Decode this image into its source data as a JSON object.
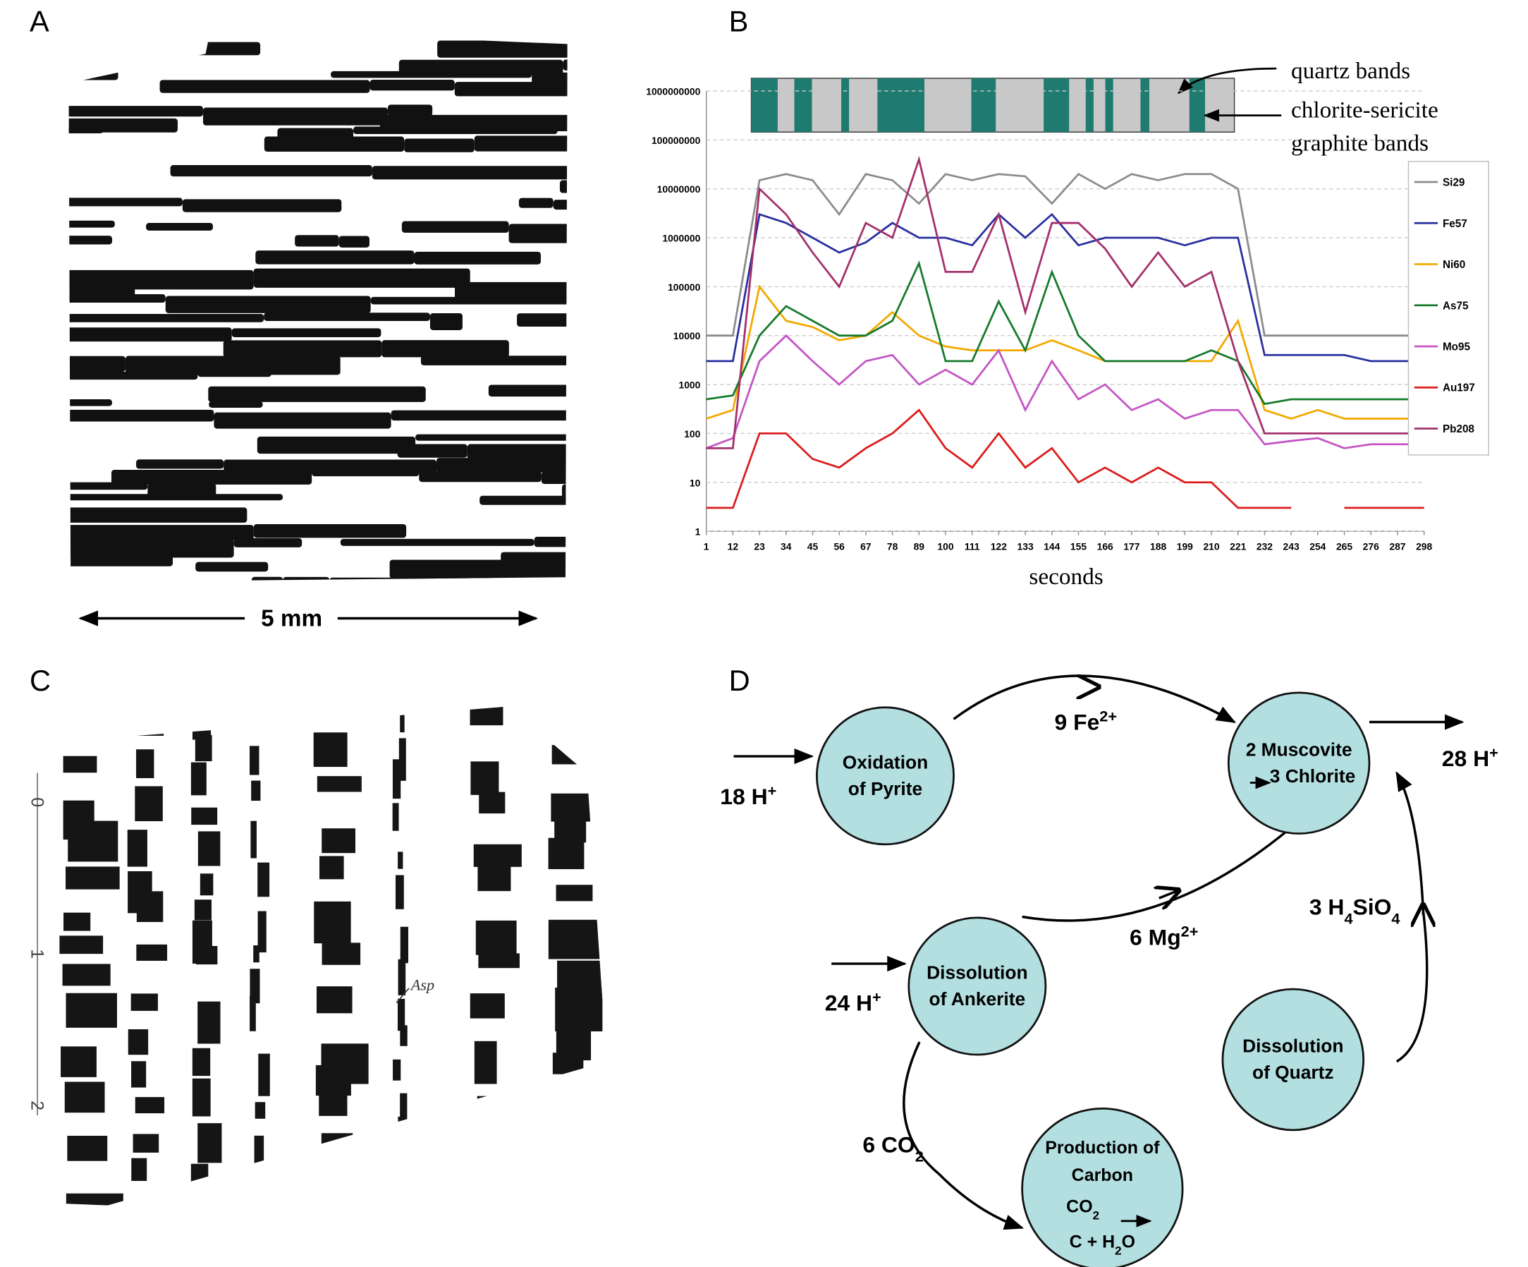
{
  "panels": {
    "A": {
      "label": "A",
      "scale": "5 mm"
    },
    "B": {
      "label": "B"
    },
    "C": {
      "label": "C",
      "annotation": "Asp",
      "ruler": [
        "0",
        "1",
        "2"
      ]
    },
    "D": {
      "label": "D"
    }
  },
  "chart_data": {
    "type": "line",
    "xlabel": "seconds",
    "yscale": "log",
    "grid": true,
    "legend": "right",
    "annotations": {
      "quartz": "quartz bands",
      "chlorite": [
        "chlorite-sericite",
        "graphite bands"
      ]
    },
    "x": [
      1,
      12,
      23,
      34,
      45,
      56,
      67,
      78,
      89,
      100,
      111,
      122,
      133,
      144,
      155,
      166,
      177,
      188,
      199,
      210,
      221,
      232,
      243,
      254,
      265,
      276,
      287,
      298
    ],
    "xlim": [
      1,
      298
    ],
    "xticks": [
      1,
      12,
      23,
      34,
      45,
      56,
      67,
      78,
      89,
      100,
      111,
      122,
      133,
      144,
      155,
      166,
      177,
      188,
      199,
      210,
      221,
      232,
      243,
      254,
      265,
      276,
      287,
      298
    ],
    "ylim": [
      1,
      1000000000
    ],
    "yticks": [
      1,
      10,
      100,
      1000,
      10000,
      100000,
      1000000,
      10000000,
      100000000,
      1000000000
    ],
    "series": [
      {
        "name": "Si29",
        "color": "#8c8c8c",
        "values": [
          10000,
          10000,
          15000000,
          20000000,
          15000000,
          3000000,
          20000000,
          15000000,
          5000000,
          20000000,
          15000000,
          20000000,
          18000000,
          5000000,
          20000000,
          10000000,
          20000000,
          15000000,
          20000000,
          20000000,
          10000000,
          10000,
          10000,
          10000,
          10000,
          10000,
          10000,
          10000
        ]
      },
      {
        "name": "Fe57",
        "color": "#2a2f9e",
        "values": [
          3000,
          3000,
          3000000,
          2000000,
          1000000,
          500000,
          800000,
          2000000,
          1000000,
          1000000,
          700000,
          3000000,
          1000000,
          3000000,
          700000,
          1000000,
          1000000,
          1000000,
          700000,
          1000000,
          1000000,
          4000,
          4000,
          4000,
          4000,
          3000,
          3000,
          3000
        ]
      },
      {
        "name": "Ni60",
        "color": "#f2a900",
        "values": [
          200,
          300,
          100000,
          20000,
          15000,
          8000,
          10000,
          30000,
          10000,
          6000,
          5000,
          5000,
          5000,
          8000,
          5000,
          3000,
          3000,
          3000,
          3000,
          3000,
          20000,
          300,
          200,
          300,
          200,
          200,
          200,
          200
        ]
      },
      {
        "name": "As75",
        "color": "#167a2c",
        "values": [
          500,
          600,
          10000,
          40000,
          20000,
          10000,
          10000,
          20000,
          300000,
          3000,
          3000,
          50000,
          5000,
          200000,
          10000,
          3000,
          3000,
          3000,
          3000,
          5000,
          3000,
          400,
          500,
          500,
          500,
          500,
          500,
          500
        ]
      },
      {
        "name": "Mo95",
        "color": "#c455c4",
        "values": [
          50,
          80,
          3000,
          10000,
          3000,
          1000,
          3000,
          4000,
          1000,
          2000,
          1000,
          5000,
          300,
          3000,
          500,
          1000,
          300,
          500,
          200,
          300,
          300,
          60,
          70,
          80,
          50,
          60,
          60,
          60
        ]
      },
      {
        "name": "Au197",
        "color": "#dc1c1c",
        "values": [
          3,
          3,
          100,
          100,
          30,
          20,
          50,
          100,
          300,
          50,
          20,
          100,
          20,
          50,
          10,
          20,
          10,
          20,
          10,
          10,
          3,
          3,
          3,
          null,
          3,
          3,
          3,
          3
        ]
      },
      {
        "name": "Pb208",
        "color": "#a3306b",
        "values": [
          50,
          50,
          10000000,
          3000000,
          500000,
          100000,
          2000000,
          1000000,
          40000000,
          200000,
          200000,
          3000000,
          30000,
          2000000,
          2000000,
          600000,
          100000,
          500000,
          100000,
          200000,
          3000,
          100,
          100,
          100,
          100,
          100,
          100,
          100
        ]
      }
    ]
  },
  "diagram": {
    "nodes": [
      {
        "lines": [
          [
            {
              "t": "Oxidation"
            }
          ],
          [
            {
              "t": "of Pyrite"
            }
          ]
        ]
      },
      {
        "lines": [
          [
            {
              "t": "2 Muscovite"
            }
          ],
          [
            {
              "t": "3 Chlorite"
            }
          ]
        ]
      },
      {
        "lines": [
          [
            {
              "t": "Dissolution"
            }
          ],
          [
            {
              "t": "of Ankerite"
            }
          ]
        ]
      },
      {
        "lines": [
          [
            {
              "t": "Dissolution"
            }
          ],
          [
            {
              "t": "of Quartz"
            }
          ]
        ]
      },
      {
        "lines": [
          [
            {
              "t": "Production of"
            }
          ],
          [
            {
              "t": "Carbon"
            }
          ],
          [
            {
              "t": "CO"
            },
            {
              "t": "2",
              "s": "sub"
            }
          ],
          [
            {
              "t": "C + H"
            },
            {
              "t": "2",
              "s": "sub"
            },
            {
              "t": "O"
            }
          ]
        ]
      }
    ],
    "edge_labels": [
      [
        {
          "t": "18 H"
        },
        {
          "t": "+",
          "s": "sup"
        }
      ],
      [
        {
          "t": "9 Fe"
        },
        {
          "t": "2+",
          "s": "sup"
        }
      ],
      [
        {
          "t": "28 H"
        },
        {
          "t": "+",
          "s": "sup"
        }
      ],
      [
        {
          "t": "6 Mg"
        },
        {
          "t": "2+",
          "s": "sup"
        }
      ],
      [
        {
          "t": "3 H"
        },
        {
          "t": "4",
          "s": "sub"
        },
        {
          "t": "SiO"
        },
        {
          "t": "4",
          "s": "sub"
        }
      ],
      [
        {
          "t": "24 H"
        },
        {
          "t": "+",
          "s": "sup"
        }
      ],
      [
        {
          "t": "6 CO"
        },
        {
          "t": "2",
          "s": "sub"
        }
      ]
    ]
  }
}
